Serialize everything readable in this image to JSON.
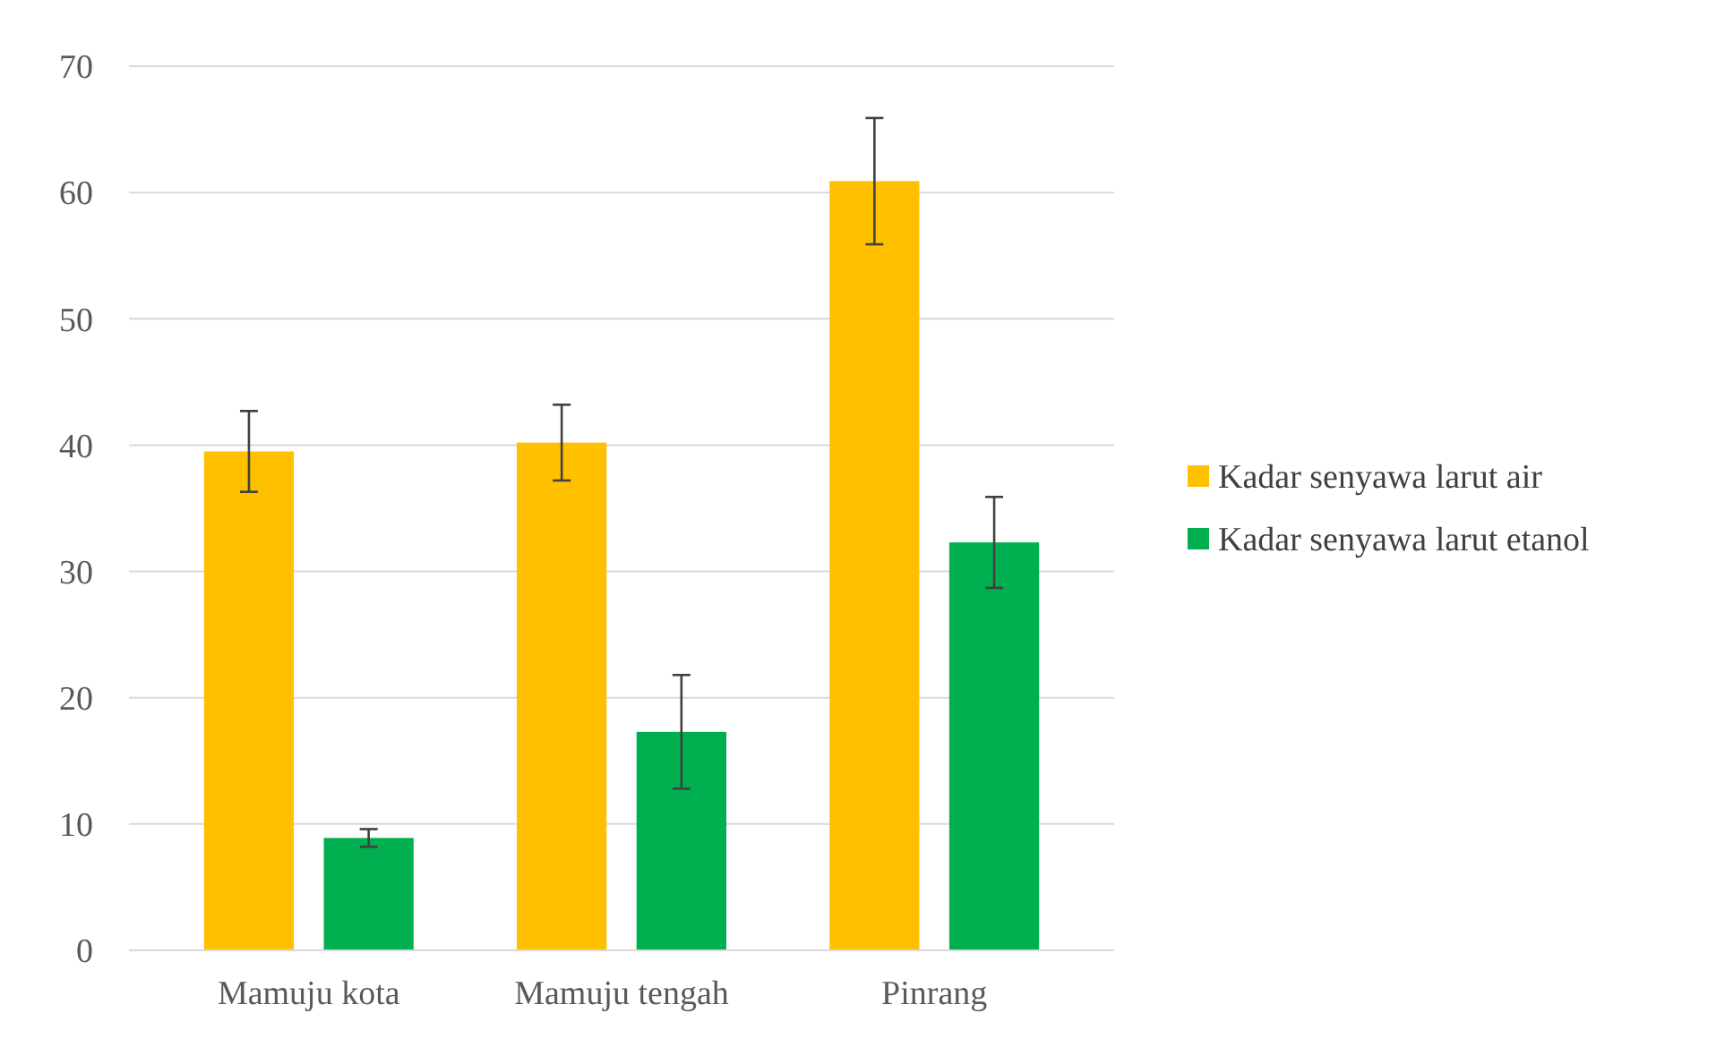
{
  "chart_data": {
    "type": "bar",
    "categories": [
      "Mamuju kota",
      "Mamuju tengah",
      "Pinrang"
    ],
    "series": [
      {
        "name": "Kadar senyawa larut air",
        "color": "#ffc000",
        "values": [
          39.5,
          40.2,
          60.9
        ],
        "errors": [
          3.2,
          3,
          5
        ]
      },
      {
        "name": "Kadar senyawa larut etanol",
        "color": "#00b050",
        "values": [
          8.9,
          17.3,
          32.3
        ],
        "errors": [
          0.7,
          4.5,
          3.6
        ]
      }
    ],
    "ylim": [
      0,
      70
    ],
    "yticks": [
      0,
      10,
      20,
      30,
      40,
      50,
      60,
      70
    ],
    "grid": "y",
    "legend": "right"
  }
}
